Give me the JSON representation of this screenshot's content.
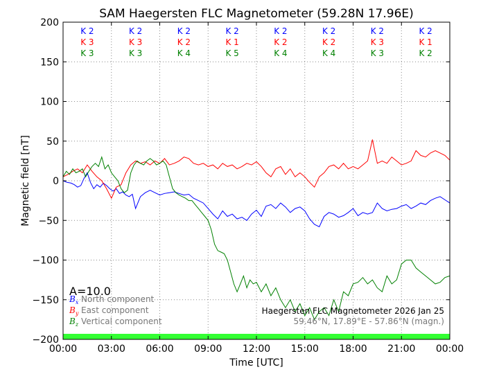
{
  "chart_data": {
    "type": "line",
    "title": "SAM Haegersten FLC Magnetometer (59.28N 17.96E)",
    "xlabel": "Time [UTC]",
    "ylabel": "Magnetic field [nT]",
    "xlim": [
      0,
      24
    ],
    "ylim": [
      -200,
      200
    ],
    "x_ticks": [
      "00:00",
      "03:00",
      "06:00",
      "09:00",
      "12:00",
      "15:00",
      "18:00",
      "21:00",
      "00:00"
    ],
    "y_ticks": [
      "200",
      "150",
      "100",
      "50",
      "0",
      "−50",
      "−100",
      "−150",
      "−200"
    ],
    "grid": true,
    "k_indices": {
      "x_centers": [
        1.5,
        4.5,
        7.5,
        10.5,
        13.5,
        16.5,
        19.5,
        22.5
      ],
      "north": [
        "K 2",
        "K 2",
        "K 2",
        "K 2",
        "K 2",
        "K 2",
        "K 2",
        "K 2"
      ],
      "east": [
        "K 3",
        "K 3",
        "K 2",
        "K 1",
        "K 2",
        "K 2",
        "K 3",
        "K 1"
      ],
      "vertical": [
        "K 3",
        "K 3",
        "K 4",
        "K 5",
        "K 4",
        "K 4",
        "K 3",
        "K 2"
      ]
    },
    "a_index": "A=10.0",
    "legend": [
      {
        "symbol": "Bx",
        "label": "North component",
        "color": "#0000ff"
      },
      {
        "symbol": "By",
        "label": "East component",
        "color": "#ff0000"
      },
      {
        "symbol": "Bz",
        "label": "Vertical component",
        "color": "#008000"
      }
    ],
    "info_line1": "Haegersten FLC Magnetometer 2026 Jan 25",
    "info_line2": "59.46°N, 17.89°E - 57.86°N (magn.)",
    "series": [
      {
        "name": "North component",
        "color": "#0000ff",
        "x": [
          0,
          0.25,
          0.5,
          0.7,
          0.9,
          1.1,
          1.3,
          1.5,
          1.7,
          1.9,
          2.1,
          2.3,
          2.5,
          2.7,
          2.9,
          3.1,
          3.3,
          3.5,
          3.7,
          3.9,
          4.1,
          4.3,
          4.5,
          4.8,
          5.1,
          5.4,
          5.7,
          6.0,
          6.3,
          6.6,
          6.9,
          7.2,
          7.5,
          7.8,
          8.1,
          8.4,
          8.7,
          9.0,
          9.3,
          9.6,
          9.9,
          10.2,
          10.5,
          10.8,
          11.1,
          11.4,
          11.7,
          12.0,
          12.3,
          12.6,
          12.9,
          13.2,
          13.5,
          13.8,
          14.1,
          14.4,
          14.7,
          15.0,
          15.3,
          15.6,
          15.9,
          16.2,
          16.5,
          16.8,
          17.1,
          17.4,
          17.7,
          18.0,
          18.3,
          18.6,
          18.9,
          19.2,
          19.5,
          19.8,
          20.1,
          20.4,
          20.7,
          21.0,
          21.3,
          21.6,
          21.9,
          22.2,
          22.5,
          22.8,
          23.1,
          23.4,
          23.7,
          24.0
        ],
        "y": [
          0,
          -2,
          -3,
          -5,
          -8,
          -6,
          3,
          10,
          -2,
          -10,
          -5,
          -8,
          -3,
          -6,
          -10,
          -13,
          -10,
          -16,
          -14,
          -18,
          -20,
          -17,
          -35,
          -20,
          -15,
          -12,
          -15,
          -18,
          -16,
          -15,
          -14,
          -16,
          -18,
          -17,
          -22,
          -25,
          -28,
          -35,
          -42,
          -48,
          -38,
          -45,
          -42,
          -48,
          -46,
          -50,
          -42,
          -37,
          -45,
          -32,
          -30,
          -35,
          -28,
          -33,
          -40,
          -35,
          -33,
          -38,
          -48,
          -55,
          -58,
          -45,
          -40,
          -42,
          -46,
          -44,
          -40,
          -35,
          -44,
          -40,
          -42,
          -40,
          -28,
          -35,
          -38,
          -36,
          -35,
          -32,
          -30,
          -35,
          -32,
          -28,
          -30,
          -25,
          -22,
          -20,
          -24,
          -28
        ]
      },
      {
        "name": "East component",
        "color": "#ff0000",
        "x": [
          0,
          0.3,
          0.6,
          0.9,
          1.2,
          1.5,
          1.8,
          2.1,
          2.4,
          2.7,
          3.0,
          3.3,
          3.6,
          3.9,
          4.2,
          4.5,
          4.8,
          5.1,
          5.4,
          5.7,
          6.0,
          6.3,
          6.6,
          6.9,
          7.2,
          7.5,
          7.8,
          8.1,
          8.4,
          8.7,
          9.0,
          9.3,
          9.6,
          9.9,
          10.2,
          10.5,
          10.8,
          11.1,
          11.4,
          11.7,
          12.0,
          12.3,
          12.6,
          12.9,
          13.2,
          13.5,
          13.8,
          14.1,
          14.4,
          14.7,
          15.0,
          15.3,
          15.6,
          15.9,
          16.2,
          16.5,
          16.8,
          17.1,
          17.4,
          17.7,
          18.0,
          18.3,
          18.6,
          18.9,
          19.2,
          19.5,
          19.8,
          20.1,
          20.4,
          20.7,
          21.0,
          21.3,
          21.6,
          21.9,
          22.2,
          22.5,
          22.8,
          23.1,
          23.4,
          23.7,
          24.0
        ],
        "y": [
          5,
          8,
          12,
          15,
          10,
          20,
          12,
          5,
          0,
          -10,
          -22,
          -8,
          -5,
          10,
          20,
          25,
          22,
          24,
          20,
          25,
          22,
          28,
          20,
          22,
          25,
          30,
          28,
          22,
          20,
          22,
          18,
          20,
          15,
          22,
          18,
          20,
          15,
          18,
          22,
          20,
          24,
          18,
          10,
          5,
          15,
          18,
          8,
          15,
          5,
          10,
          5,
          -2,
          -8,
          5,
          10,
          18,
          20,
          15,
          22,
          15,
          18,
          15,
          20,
          25,
          52,
          22,
          25,
          22,
          30,
          25,
          20,
          22,
          25,
          38,
          32,
          30,
          35,
          38,
          35,
          32,
          26
        ]
      },
      {
        "name": "Vertical component",
        "color": "#008000",
        "x": [
          0,
          0.2,
          0.4,
          0.6,
          0.8,
          1.0,
          1.2,
          1.4,
          1.6,
          1.8,
          2.0,
          2.2,
          2.4,
          2.6,
          2.8,
          3.0,
          3.2,
          3.4,
          3.6,
          3.8,
          4.0,
          4.2,
          4.4,
          4.6,
          4.8,
          5.0,
          5.2,
          5.4,
          5.6,
          5.8,
          6.0,
          6.2,
          6.4,
          6.6,
          6.8,
          7.0,
          7.2,
          7.4,
          7.6,
          7.8,
          8.0,
          8.2,
          8.4,
          8.6,
          8.8,
          9.0,
          9.2,
          9.4,
          9.6,
          9.8,
          10.0,
          10.2,
          10.4,
          10.6,
          10.8,
          11.0,
          11.2,
          11.4,
          11.6,
          11.8,
          12.0,
          12.3,
          12.6,
          12.9,
          13.2,
          13.5,
          13.8,
          14.1,
          14.4,
          14.7,
          15.0,
          15.3,
          15.6,
          15.9,
          16.2,
          16.5,
          16.8,
          17.1,
          17.4,
          17.7,
          18.0,
          18.3,
          18.6,
          18.9,
          19.2,
          19.5,
          19.8,
          20.1,
          20.4,
          20.7,
          21.0,
          21.3,
          21.6,
          21.9,
          22.2,
          22.5,
          22.8,
          23.1,
          23.4,
          23.7,
          24.0
        ],
        "y": [
          5,
          12,
          8,
          15,
          10,
          12,
          15,
          5,
          12,
          18,
          22,
          18,
          30,
          15,
          20,
          10,
          5,
          0,
          -10,
          -15,
          -12,
          10,
          20,
          25,
          22,
          20,
          25,
          28,
          25,
          20,
          22,
          25,
          20,
          5,
          -10,
          -15,
          -18,
          -20,
          -22,
          -25,
          -25,
          -30,
          -35,
          -40,
          -45,
          -50,
          -62,
          -80,
          -88,
          -90,
          -92,
          -100,
          -115,
          -130,
          -140,
          -130,
          -120,
          -135,
          -125,
          -130,
          -128,
          -140,
          -130,
          -145,
          -135,
          -150,
          -160,
          -150,
          -165,
          -155,
          -170,
          -160,
          -175,
          -165,
          -160,
          -170,
          -150,
          -165,
          -140,
          -145,
          -130,
          -128,
          -122,
          -130,
          -125,
          -135,
          -140,
          -120,
          -130,
          -125,
          -105,
          -100,
          -100,
          -110,
          -115,
          -120,
          -125,
          -130,
          -128,
          -122,
          -120
        ]
      }
    ]
  }
}
